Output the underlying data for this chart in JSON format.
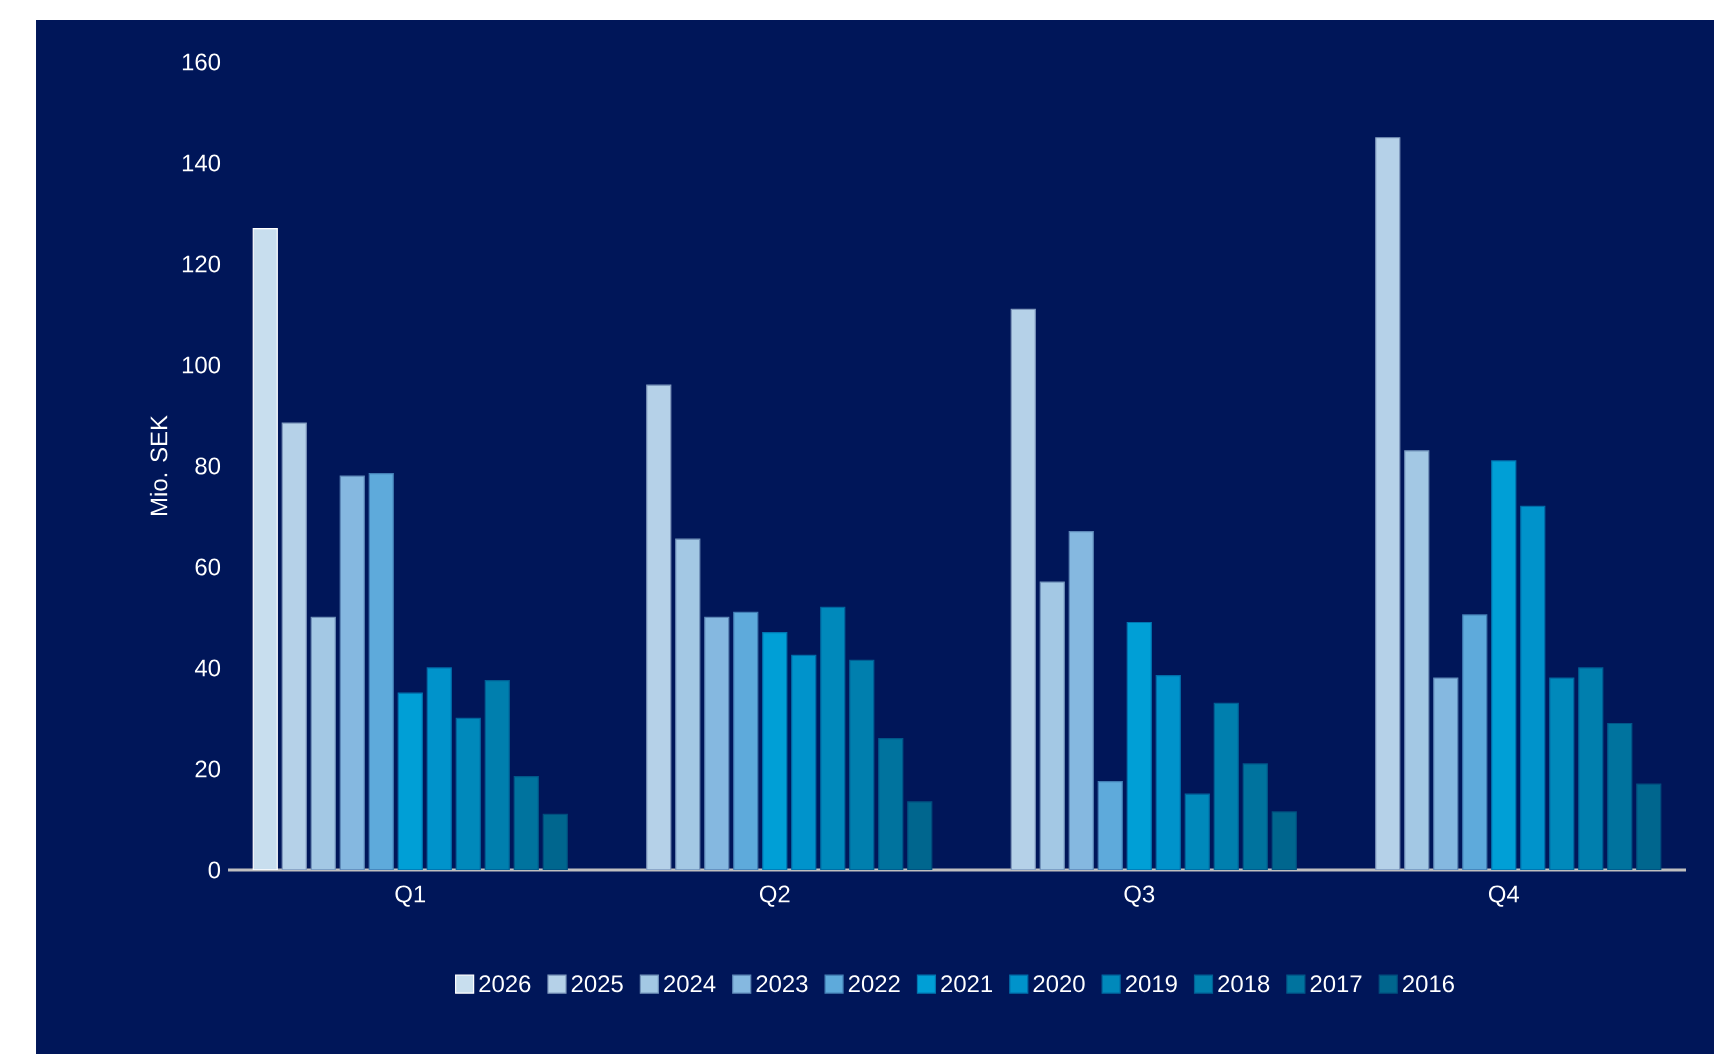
{
  "chart_data": {
    "type": "bar",
    "ylabel": "Mio. SEK",
    "categories": [
      "Q1",
      "Q2",
      "Q3",
      "Q4"
    ],
    "ylim": [
      0,
      160
    ],
    "yticks": [
      0,
      20,
      40,
      60,
      80,
      100,
      120,
      140,
      160
    ],
    "legend": "bottom",
    "series": [
      {
        "name": "2026",
        "color": "#c8deee",
        "values": [
          127,
          null,
          null,
          null
        ]
      },
      {
        "name": "2025",
        "color": "#b5d1e8",
        "values": [
          88.5,
          96,
          111,
          145
        ]
      },
      {
        "name": "2024",
        "color": "#a3c8e4",
        "values": [
          50,
          65.5,
          57,
          83
        ]
      },
      {
        "name": "2023",
        "color": "#85b8e0",
        "values": [
          78,
          50,
          67,
          38
        ]
      },
      {
        "name": "2022",
        "color": "#5eaadb",
        "values": [
          78.5,
          51,
          17.5,
          50.5
        ]
      },
      {
        "name": "2021",
        "color": "#009fd6",
        "values": [
          35,
          47,
          49,
          81
        ]
      },
      {
        "name": "2020",
        "color": "#0093cb",
        "values": [
          40,
          42.5,
          38.5,
          72
        ]
      },
      {
        "name": "2019",
        "color": "#0089bb",
        "values": [
          30,
          52,
          15,
          38
        ]
      },
      {
        "name": "2018",
        "color": "#007fae",
        "values": [
          37.5,
          41.5,
          33,
          40
        ]
      },
      {
        "name": "2017",
        "color": "#00739e",
        "values": [
          18.5,
          26,
          21,
          29
        ]
      },
      {
        "name": "2016",
        "color": "#00668e",
        "values": [
          11,
          13.5,
          11.5,
          17
        ]
      }
    ]
  }
}
